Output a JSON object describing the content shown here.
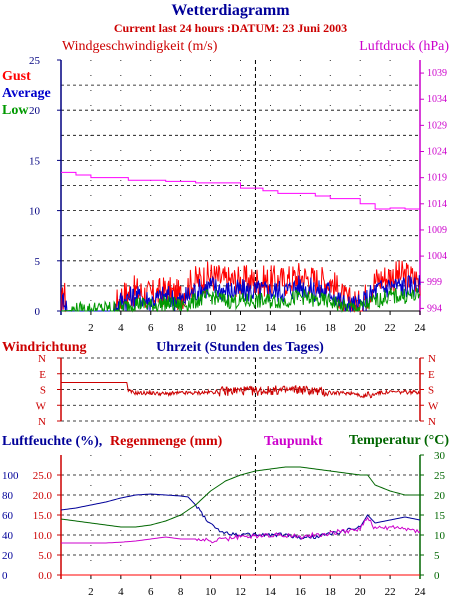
{
  "page": {
    "title": "Wetterdiagramm",
    "subtitle": "Current last 24 hours :DATUM: 23 Juni 2003"
  },
  "chart_data": [
    {
      "id": "wind_pressure",
      "type": "line",
      "left_axis_label": "Windgeschwindigkeit (m/s)",
      "right_axis_label": "Luftdruck (hPa)",
      "x_label": "Uhrzeit (Stunden des Tages)",
      "xlim": [
        0,
        24
      ],
      "x_ticks": [
        2,
        4,
        6,
        8,
        10,
        12,
        14,
        16,
        18,
        20,
        22,
        24
      ],
      "y_ticks": [
        0,
        5,
        10,
        15,
        20,
        25
      ],
      "ylim": [
        0,
        25
      ],
      "y2_ticks": [
        994,
        999,
        1004,
        1009,
        1014,
        1019,
        1024,
        1029,
        1034,
        1039
      ],
      "y2lim": [
        993.5,
        1041.5
      ],
      "marker_x": 13,
      "series": [
        {
          "name": "Gust",
          "color": "#ff0000",
          "axis": "left",
          "style": "noisy",
          "x": [
            0,
            0.2,
            0.4,
            3.5,
            4,
            5,
            6,
            7,
            8,
            8.5,
            9,
            10,
            11,
            12,
            13,
            14,
            15,
            16,
            17,
            18,
            19,
            20,
            21,
            22,
            23,
            24
          ],
          "y": [
            0,
            2,
            0,
            0,
            1.5,
            2,
            1.5,
            2,
            1.5,
            2.5,
            3,
            3.5,
            3,
            3,
            3,
            3,
            3,
            3.5,
            3,
            3,
            1,
            0.5,
            3,
            3.5,
            3.5,
            3
          ]
        },
        {
          "name": "Average",
          "color": "#0000cc",
          "axis": "left",
          "style": "noisy",
          "x": [
            0,
            0.2,
            0.4,
            3.5,
            4,
            5,
            6,
            7,
            8,
            8.5,
            9,
            10,
            11,
            12,
            13,
            14,
            15,
            16,
            17,
            18,
            19,
            20,
            21,
            22,
            23,
            24
          ],
          "y": [
            0,
            1.5,
            0,
            0,
            1,
            1.5,
            1,
            1.5,
            1,
            1.5,
            2,
            2.5,
            2,
            2,
            2,
            2,
            2,
            2.5,
            2,
            2,
            0.5,
            0.5,
            2,
            2.5,
            2.5,
            2.5
          ]
        },
        {
          "name": "Low",
          "color": "#009900",
          "axis": "left",
          "style": "noisy",
          "x": [
            0,
            4,
            5,
            6,
            7,
            8,
            9,
            10,
            11,
            12,
            13,
            14,
            15,
            16,
            17,
            18,
            19,
            20,
            21,
            22,
            23,
            24
          ],
          "y": [
            0,
            0.3,
            0.8,
            0.5,
            0.8,
            0.5,
            1,
            1.5,
            1,
            1,
            1,
            1,
            1,
            1.5,
            1,
            1,
            0.3,
            0.3,
            1,
            1.5,
            1.5,
            1.5
          ]
        },
        {
          "name": "Luftdruck",
          "color": "#ff00ff",
          "axis": "right",
          "style": "step",
          "x": [
            0,
            1,
            2,
            4.5,
            7,
            9,
            12,
            13.5,
            14.5,
            17,
            18,
            20,
            21,
            22,
            23,
            24
          ],
          "y": [
            1020,
            1019.5,
            1019,
            1018.5,
            1018.3,
            1018,
            1017,
            1016.5,
            1016,
            1015.5,
            1015,
            1014,
            1013,
            1013.2,
            1013,
            1013
          ]
        }
      ]
    },
    {
      "id": "wind_direction",
      "type": "line",
      "title": "Windrichtung",
      "y_ticks": [
        "N",
        "W",
        "S",
        "E",
        "N"
      ],
      "xlim": [
        0,
        24
      ],
      "marker_x": 13,
      "series": [
        {
          "name": "Windrichtung",
          "color": "#cc0000",
          "style": "noisy-dir",
          "x": [
            0,
            4.4,
            4.5,
            5,
            6,
            7,
            8,
            9,
            10,
            11,
            12,
            13,
            14,
            15,
            16,
            17,
            18,
            19,
            20,
            21,
            22,
            23,
            24
          ],
          "y": [
            220,
            220,
            170,
            160,
            160,
            155,
            160,
            160,
            165,
            170,
            175,
            170,
            175,
            175,
            180,
            170,
            160,
            160,
            160,
            160,
            165,
            165,
            165
          ]
        }
      ]
    },
    {
      "id": "humidity_temp",
      "type": "line",
      "labels": {
        "humidity": "Luftfeuchte (%),",
        "rain": "Regenmenge (mm)",
        "dewpoint": "Taupunkt",
        "temperature": "Temperatur (°C)"
      },
      "xlim": [
        0,
        24
      ],
      "x_ticks": [
        2,
        4,
        6,
        8,
        10,
        12,
        14,
        16,
        18,
        20,
        22,
        24
      ],
      "humidity_ticks": [
        0,
        20,
        40,
        60,
        80,
        100
      ],
      "humidity_lim": [
        0,
        120
      ],
      "rain_ticks": [
        "0.0",
        "5.0",
        "10.0",
        "15.0",
        "20.0",
        "25.0"
      ],
      "temp_ticks": [
        0,
        5,
        10,
        15,
        20,
        25,
        30
      ],
      "temp_lim": [
        0,
        30
      ],
      "marker_x": 13,
      "series": [
        {
          "name": "Luftfeuchte",
          "color": "#000099",
          "axis": "humidity",
          "style": "smooth",
          "x": [
            0,
            1,
            2,
            3,
            4,
            5,
            6,
            7,
            8,
            8.5,
            9,
            10,
            11,
            12,
            13,
            14,
            15,
            16,
            17,
            18,
            19,
            20,
            20.5,
            21,
            22,
            23,
            24
          ],
          "y": [
            65,
            67,
            70,
            73,
            77,
            80,
            81,
            80,
            79,
            78,
            70,
            50,
            42,
            40,
            40,
            40,
            40,
            37,
            38,
            41,
            44,
            48,
            60,
            52,
            55,
            58,
            55
          ]
        },
        {
          "name": "Temperatur",
          "color": "#006600",
          "axis": "temp",
          "style": "smooth",
          "x": [
            0,
            1,
            2,
            3,
            4,
            5,
            6,
            7,
            8,
            9,
            10,
            11,
            12,
            13,
            14,
            15,
            16,
            17,
            18,
            19,
            20,
            20.5,
            21,
            22,
            23,
            24
          ],
          "y": [
            14,
            13.5,
            13,
            12.5,
            12,
            12,
            12.5,
            13.5,
            15,
            17.5,
            21,
            23.5,
            25,
            26,
            26.5,
            27,
            27,
            26.5,
            26,
            25.5,
            25,
            25,
            22.5,
            21,
            20,
            20
          ]
        },
        {
          "name": "Taupunkt",
          "color": "#cc00cc",
          "axis": "temp",
          "style": "smooth",
          "x": [
            0,
            1,
            2,
            3,
            4,
            5,
            6,
            7,
            8,
            9,
            10,
            11,
            12,
            13,
            14,
            15,
            16,
            17,
            18,
            19,
            20,
            20.5,
            21,
            22,
            23,
            24
          ],
          "y": [
            8,
            8,
            8,
            8,
            8.2,
            8.5,
            9,
            9.5,
            9,
            9,
            8.5,
            9,
            9.5,
            9.8,
            10,
            10,
            9.5,
            10,
            10.5,
            11,
            11.5,
            14.5,
            11.5,
            12,
            11.5,
            11
          ]
        },
        {
          "name": "Regenmenge",
          "color": "#ff0000",
          "axis": "rain",
          "style": "smooth",
          "x": [
            0,
            4,
            8,
            9,
            10,
            11,
            12,
            13,
            14,
            15,
            16,
            17,
            18,
            19,
            20,
            20.5,
            21,
            22,
            23,
            24
          ],
          "y": [
            0,
            0,
            0,
            0,
            0,
            0,
            0,
            0,
            0,
            0,
            0,
            0,
            0,
            0,
            0,
            0,
            0,
            0,
            0,
            0
          ]
        }
      ]
    }
  ]
}
